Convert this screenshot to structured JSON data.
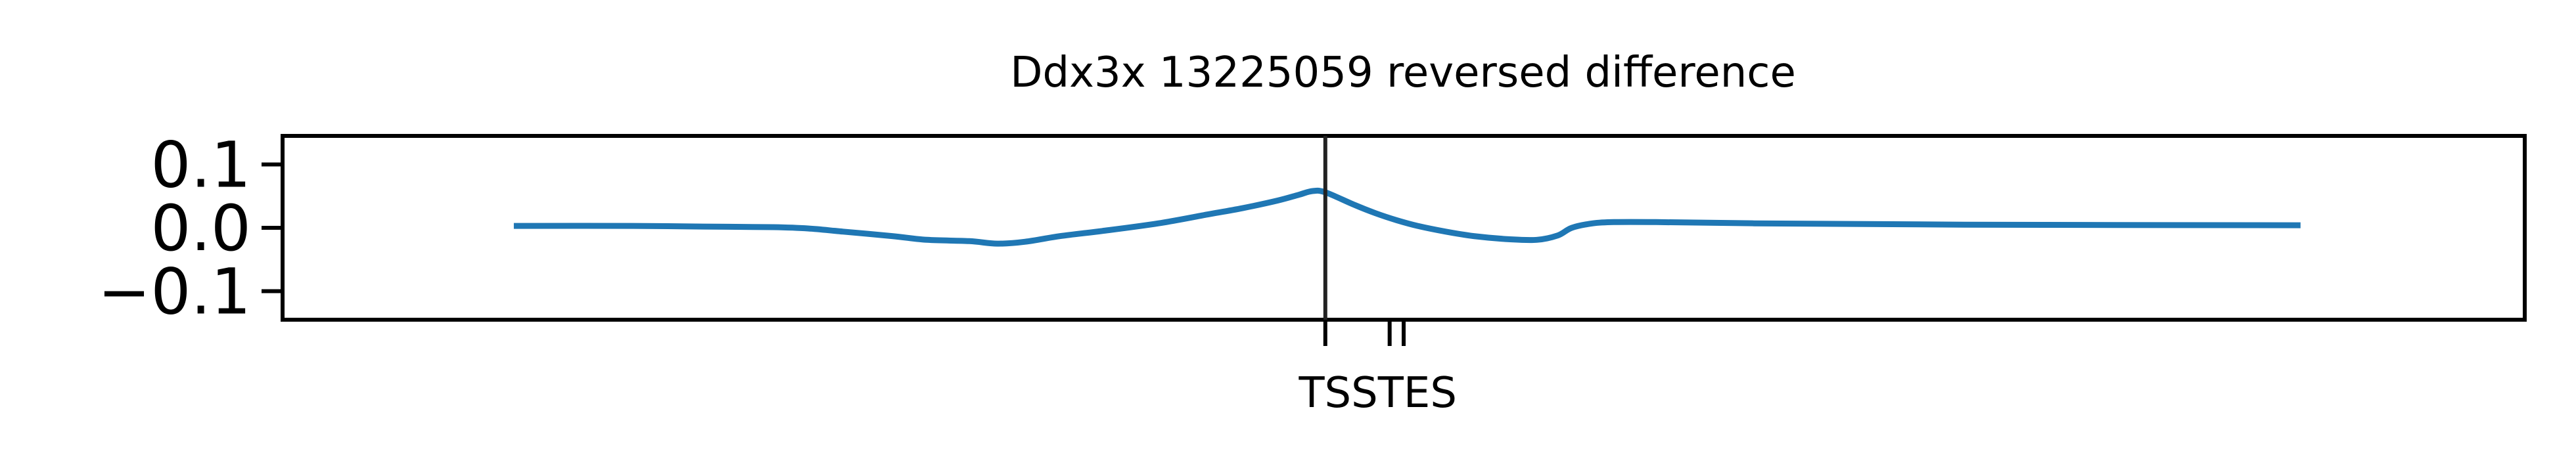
{
  "chart_data": {
    "type": "line",
    "title": "Ddx3x 13225059 reversed difference",
    "xlabel": "",
    "ylabel": "",
    "xlim": [
      -0.6,
      2.6
    ],
    "ylim": [
      -0.145,
      0.145
    ],
    "yticks": [
      {
        "value": 0.1,
        "label": "0.1"
      },
      {
        "value": 0.0,
        "label": "0.0"
      },
      {
        "value": -0.1,
        "label": "−0.1"
      }
    ],
    "xticks": [
      {
        "value": 0.8882,
        "label": "TSS"
      },
      {
        "value": 0.98,
        "label": ""
      },
      {
        "value": 1.0,
        "label": "TES"
      }
    ],
    "vline_x": 0.8882,
    "grid": false,
    "legend": "none",
    "series": [
      {
        "color": "#1f77b4",
        "x": [
          -0.27,
          -0.1,
          0.0,
          0.1,
          0.15,
          0.2,
          0.27,
          0.32,
          0.38,
          0.42,
          0.46,
          0.51,
          0.57,
          0.65,
          0.72,
          0.77,
          0.82,
          0.85,
          0.87,
          0.8882,
          0.93,
          0.96,
          0.99,
          1.02,
          1.06,
          1.1,
          1.15,
          1.19,
          1.22,
          1.24,
          1.27,
          1.3,
          1.36,
          1.5,
          1.8,
          2.28
        ],
        "values": [
          0.003,
          0.003,
          0.002,
          0.001,
          -0.001,
          -0.006,
          -0.013,
          -0.019,
          -0.021,
          -0.025,
          -0.022,
          -0.013,
          -0.005,
          0.007,
          0.021,
          0.031,
          0.043,
          0.052,
          0.058,
          0.056,
          0.036,
          0.023,
          0.012,
          0.003,
          -0.006,
          -0.013,
          -0.018,
          -0.019,
          -0.012,
          0.0,
          0.007,
          0.009,
          0.009,
          0.007,
          0.005,
          0.004
        ]
      }
    ]
  }
}
